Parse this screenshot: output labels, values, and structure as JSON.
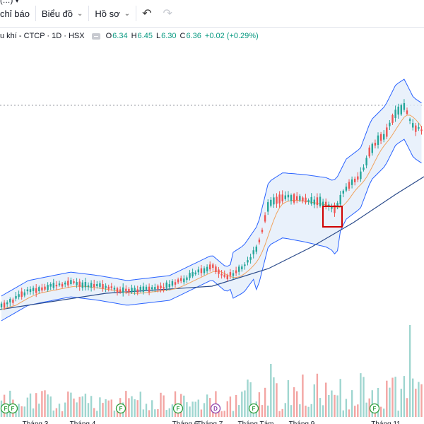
{
  "toolbar": {
    "top_clip": "(…) ▾",
    "indicators_label": "chỉ báo",
    "chart_type_label": "Biểu đồ",
    "profile_label": "Hồ sơ"
  },
  "legend": {
    "symbol_title": "u khí - CTCP · 1D · HSX",
    "open_key": "O",
    "open": "6.34",
    "high_key": "H",
    "high": "6.45",
    "low_key": "L",
    "low": "6.30",
    "close_key": "C",
    "close": "6.36",
    "change": "+0.02 (+0.29%)"
  },
  "colors": {
    "up": "#26a69a",
    "down": "#ef5350",
    "volume_up": "#9fd6d0",
    "volume_down": "#f3a5a3",
    "bollinger": "#2962ff",
    "bollinger_fill": "#e3eefa",
    "ma_short": "#f0a35e",
    "ma_long": "#2a4a8a",
    "highlight_box": "#d00000"
  },
  "icons": {
    "undo": "undo-icon",
    "redo": "redo-icon"
  },
  "x_axis": {
    "months": [
      "Tháng 3",
      "Tháng 4",
      "Tháng 6",
      "Tháng 7",
      "Tháng Tám",
      "Tháng 9",
      "Tháng 11"
    ]
  },
  "events": {
    "labels": [
      "F",
      "F",
      "F",
      "F",
      "D",
      "F",
      "F"
    ]
  }
}
